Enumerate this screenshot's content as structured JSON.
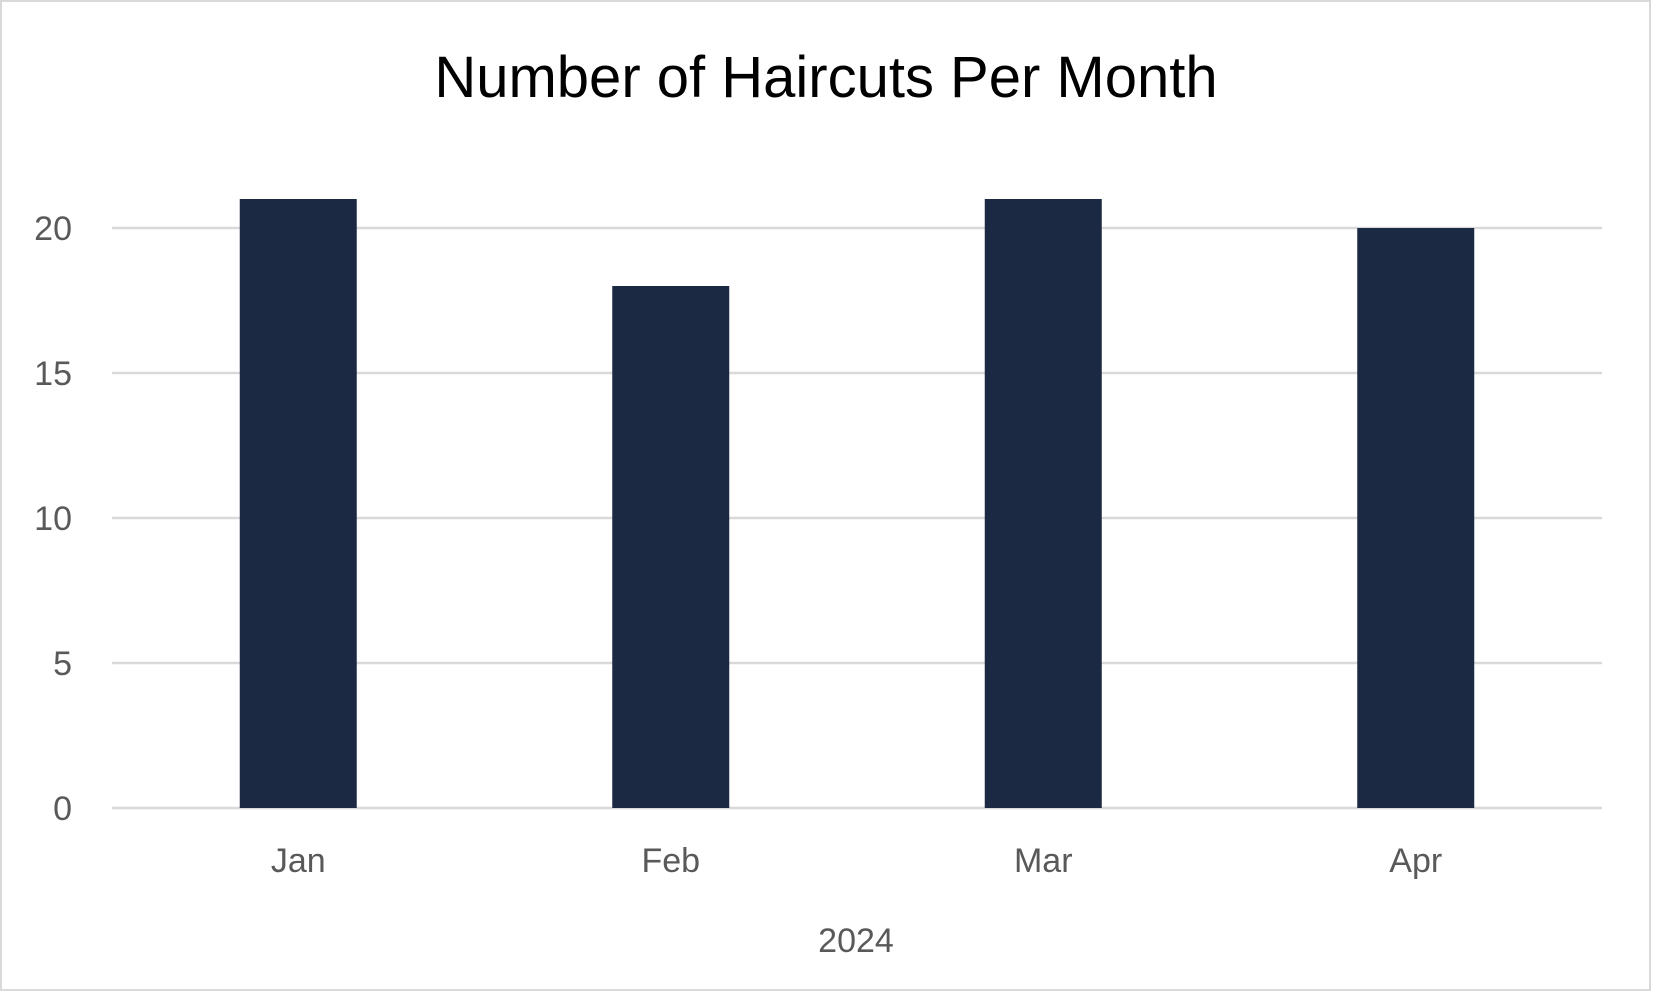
{
  "chart_data": {
    "type": "bar",
    "title": "Number of Haircuts Per Month",
    "xlabel": "2024",
    "ylabel": "",
    "categories": [
      "Jan",
      "Feb",
      "Mar",
      "Apr"
    ],
    "values": [
      21,
      18,
      21,
      20
    ],
    "yticks": [
      "0",
      "5",
      "10",
      "15",
      "20"
    ],
    "ylim": [
      0,
      22
    ],
    "grid": true,
    "legend": "none",
    "colors": {
      "bar": "#1c2942",
      "gridline": "#d9d9d9",
      "tick_label": "#595959",
      "title": "#000000"
    }
  }
}
